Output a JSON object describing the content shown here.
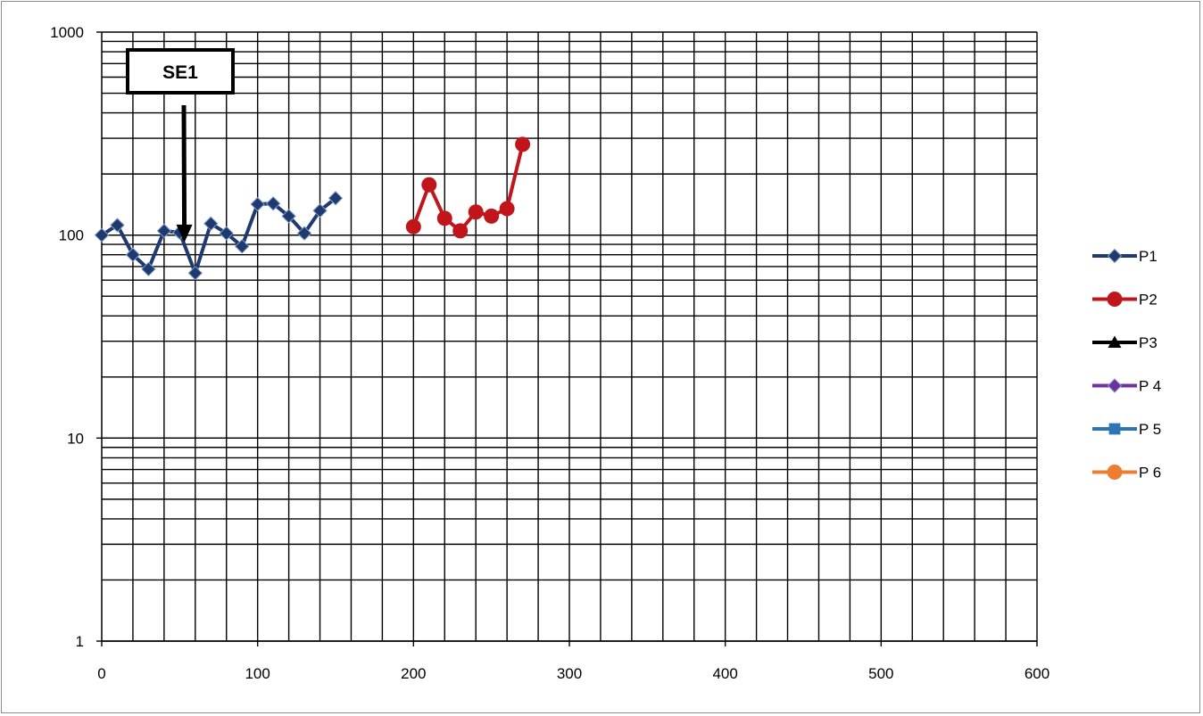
{
  "chart_data": {
    "type": "line",
    "title": "",
    "xlabel": "",
    "ylabel": "",
    "xlim": [
      0,
      600
    ],
    "ylim": [
      1,
      1000
    ],
    "yscale": "log",
    "grid": true,
    "legend_position": "right",
    "x_ticks": [
      "0",
      "100",
      "200",
      "300",
      "400",
      "500",
      "600"
    ],
    "y_ticks": [
      "1",
      "10",
      "100",
      "1000"
    ],
    "series": [
      {
        "name": "P1",
        "color": "#1f3a6e",
        "marker": "diamond",
        "x": [
          0,
          10,
          20,
          30,
          40,
          50,
          60,
          70,
          80,
          90,
          100,
          110,
          120,
          130,
          140,
          150
        ],
        "y": [
          100,
          112,
          80,
          68,
          105,
          103,
          65,
          114,
          102,
          88,
          142,
          143,
          124,
          102,
          132,
          152
        ]
      },
      {
        "name": "P2",
        "color": "#c0161b",
        "marker": "circle",
        "x": [
          200,
          210,
          220,
          230,
          240,
          250,
          260,
          270
        ],
        "y": [
          110,
          177,
          121,
          105,
          130,
          124,
          135,
          280
        ]
      },
      {
        "name": "P3",
        "color": "#000000",
        "marker": "triangle",
        "x": [],
        "y": []
      },
      {
        "name": "P 4",
        "color": "#7030a0",
        "marker": "diamond",
        "x": [],
        "y": []
      },
      {
        "name": "P 5",
        "color": "#2e75b6",
        "marker": "square",
        "x": [],
        "y": []
      },
      {
        "name": "P 6",
        "color": "#ed7d31",
        "marker": "circle",
        "x": [],
        "y": []
      }
    ],
    "annotations": [
      {
        "text": "SE1",
        "x": 53,
        "y": 92,
        "type": "arrow-callout"
      }
    ]
  }
}
